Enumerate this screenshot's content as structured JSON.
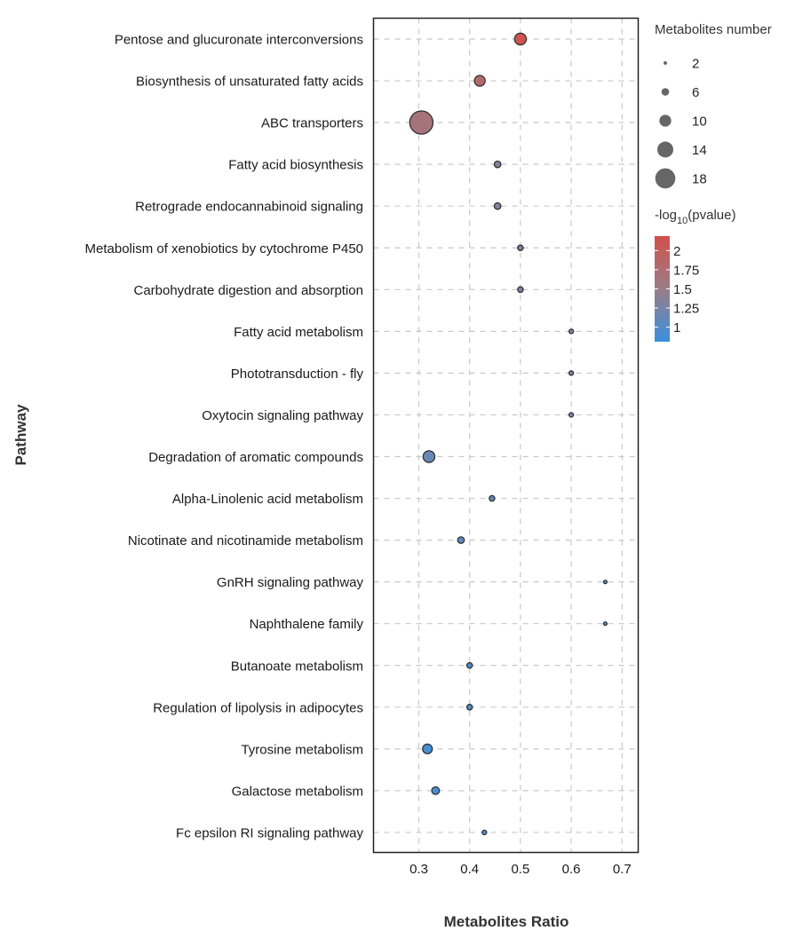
{
  "chart_data": {
    "type": "scatter",
    "subtype": "bubble",
    "title": "",
    "xlabel": "Metabolites Ratio",
    "ylabel": "Pathway",
    "xlim": [
      0.21,
      0.73
    ],
    "x_ticks": [
      0.3,
      0.4,
      0.5,
      0.6,
      0.7
    ],
    "x_tick_labels": [
      "0.3",
      "0.4",
      "0.5",
      "0.6",
      "0.7"
    ],
    "grid": true,
    "grid_style": "dashed",
    "categories": [
      "Pentose and glucuronate interconversions",
      "Biosynthesis of unsaturated fatty acids",
      "ABC transporters",
      "Fatty acid biosynthesis",
      "Retrograde endocannabinoid signaling",
      "Metabolism of xenobiotics by cytochrome P450",
      "Carbohydrate digestion and absorption",
      "Fatty acid metabolism",
      "Phototransduction - fly",
      "Oxytocin signaling pathway",
      "Degradation of aromatic compounds",
      "Alpha-Linolenic acid metabolism",
      "Nicotinate and nicotinamide metabolism",
      "GnRH signaling pathway",
      "Naphthalene family",
      "Butanoate metabolism",
      "Regulation of lipolysis in adipocytes",
      "Tyrosine metabolism",
      "Galactose metabolism",
      "Fc epsilon RI signaling pathway"
    ],
    "points": [
      {
        "pathway": "Pentose and glucuronate interconversions",
        "ratio": 0.5,
        "count": 10,
        "neglog10p": 2.15
      },
      {
        "pathway": "Biosynthesis of unsaturated fatty acids",
        "ratio": 0.42,
        "count": 9,
        "neglog10p": 1.8
      },
      {
        "pathway": "ABC transporters",
        "ratio": 0.305,
        "count": 21,
        "neglog10p": 1.65
      },
      {
        "pathway": "Fatty acid biosynthesis",
        "ratio": 0.455,
        "count": 5,
        "neglog10p": 1.35
      },
      {
        "pathway": "Retrograde endocannabinoid signaling",
        "ratio": 0.455,
        "count": 5,
        "neglog10p": 1.35
      },
      {
        "pathway": "Metabolism of xenobiotics by cytochrome P450",
        "ratio": 0.5,
        "count": 4,
        "neglog10p": 1.3
      },
      {
        "pathway": "Carbohydrate digestion and absorption",
        "ratio": 0.5,
        "count": 4,
        "neglog10p": 1.3
      },
      {
        "pathway": "Fatty acid metabolism",
        "ratio": 0.6,
        "count": 3,
        "neglog10p": 1.3
      },
      {
        "pathway": "Phototransduction - fly",
        "ratio": 0.6,
        "count": 3,
        "neglog10p": 1.3
      },
      {
        "pathway": "Oxytocin signaling pathway",
        "ratio": 0.6,
        "count": 3,
        "neglog10p": 1.3
      },
      {
        "pathway": "Degradation of aromatic compounds",
        "ratio": 0.32,
        "count": 10,
        "neglog10p": 1.15
      },
      {
        "pathway": "Alpha-Linolenic acid metabolism",
        "ratio": 0.444,
        "count": 4,
        "neglog10p": 1.1
      },
      {
        "pathway": "Nicotinate and nicotinamide metabolism",
        "ratio": 0.383,
        "count": 5,
        "neglog10p": 1.05
      },
      {
        "pathway": "GnRH signaling pathway",
        "ratio": 0.667,
        "count": 2,
        "neglog10p": 1.05
      },
      {
        "pathway": "Naphthalene family",
        "ratio": 0.667,
        "count": 2,
        "neglog10p": 1.05
      },
      {
        "pathway": "Butanoate metabolism",
        "ratio": 0.4,
        "count": 4,
        "neglog10p": 1.0
      },
      {
        "pathway": "Regulation of lipolysis in adipocytes",
        "ratio": 0.4,
        "count": 4,
        "neglog10p": 1.0
      },
      {
        "pathway": "Tyrosine metabolism",
        "ratio": 0.317,
        "count": 8,
        "neglog10p": 0.9
      },
      {
        "pathway": "Galactose metabolism",
        "ratio": 0.333,
        "count": 6,
        "neglog10p": 0.9
      },
      {
        "pathway": "Fc epsilon RI signaling pathway",
        "ratio": 0.429,
        "count": 3,
        "neglog10p": 0.95
      }
    ],
    "size_legend": {
      "title": "Metabolites number",
      "values": [
        2,
        6,
        10,
        14,
        18
      ],
      "labels": [
        "2",
        "6",
        "10",
        "14",
        "18"
      ],
      "placement": "top-right"
    },
    "color_legend": {
      "title_prefix": "-log",
      "title_sub": "10",
      "title_suffix": "(pvalue)",
      "range": [
        0.81,
        2.19
      ],
      "ticks": [
        2,
        1.75,
        1.5,
        1.25,
        1
      ],
      "tick_labels": [
        "2",
        "1.75",
        "1.5",
        "1.25",
        "1"
      ],
      "colors": {
        "low": "#3a90de",
        "mid": "#9a7d88",
        "high": "#d2504b"
      },
      "placement": "right"
    },
    "marker_fill_legend": "#666666",
    "marker_edge": "#2b2b2b"
  }
}
